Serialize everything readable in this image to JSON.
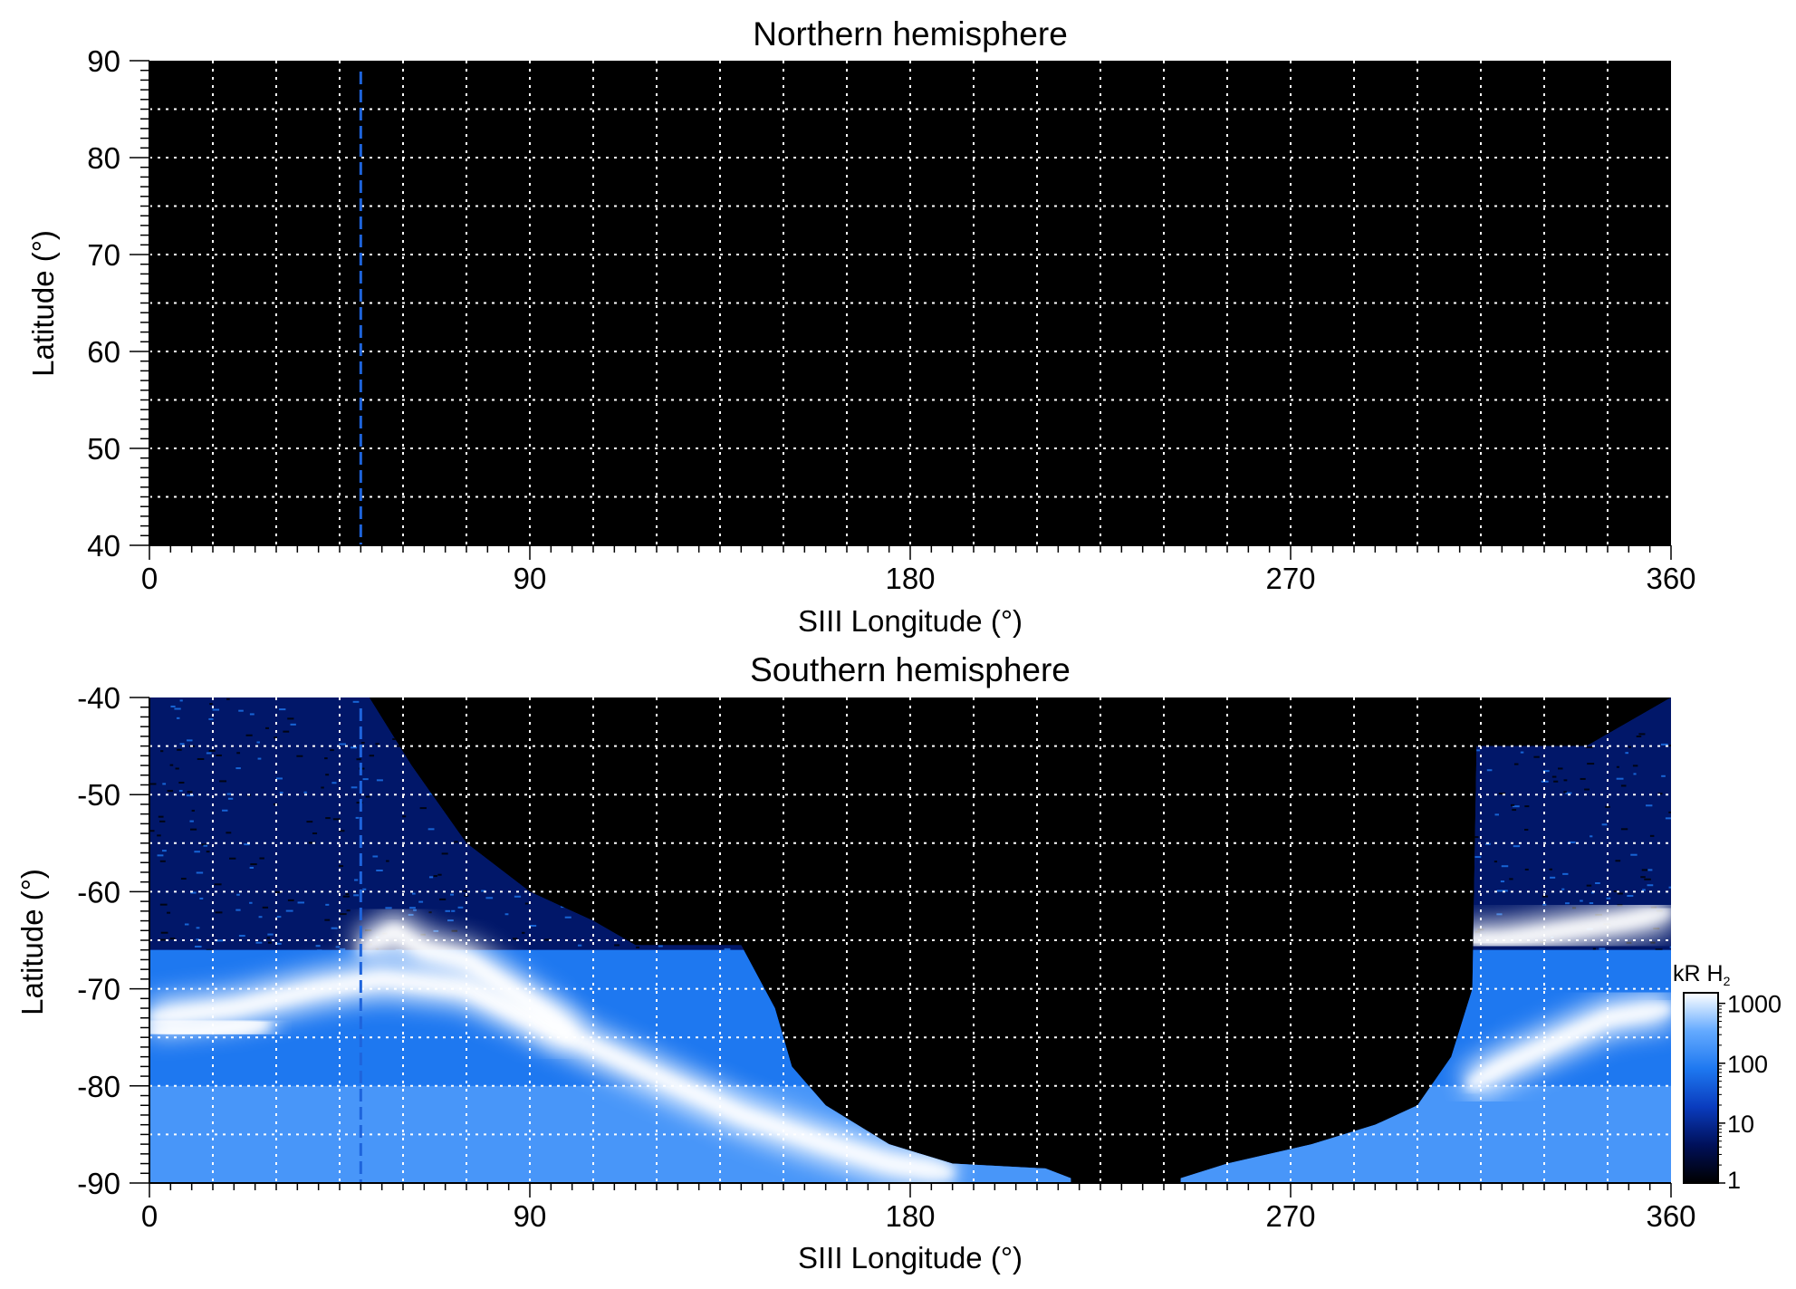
{
  "chart_data": [
    {
      "type": "heatmap",
      "title": "Northern hemisphere",
      "xlabel": "SIII Longitude (°)",
      "ylabel": "Latitude (°)",
      "xlim": [
        0,
        360
      ],
      "ylim": [
        40,
        90
      ],
      "x_ticks": [
        "0",
        "90",
        "180",
        "270",
        "360"
      ],
      "x_tick_values": [
        0,
        90,
        180,
        270,
        360
      ],
      "y_ticks": [
        "90",
        "80",
        "70",
        "60",
        "50",
        "40"
      ],
      "y_tick_values": [
        90,
        80,
        70,
        60,
        50,
        40
      ],
      "grid": true,
      "grid_x_step": 15,
      "grid_y_step": 5,
      "background": "#000000",
      "marker_longitude": 50,
      "emission_regions": []
    },
    {
      "type": "heatmap",
      "title": "Southern hemisphere",
      "xlabel": "SIII Longitude (°)",
      "ylabel": "Latitude (°)",
      "xlim": [
        0,
        360
      ],
      "ylim": [
        -90,
        -40
      ],
      "x_ticks": [
        "0",
        "90",
        "180",
        "270",
        "360"
      ],
      "x_tick_values": [
        0,
        90,
        180,
        270,
        360
      ],
      "y_ticks": [
        "-40",
        "-50",
        "-60",
        "-70",
        "-80",
        "-90"
      ],
      "y_tick_values": [
        -40,
        -50,
        -60,
        -70,
        -80,
        -90
      ],
      "grid": true,
      "grid_x_step": 15,
      "grid_y_step": 5,
      "background": "#000000",
      "marker_longitude": 50,
      "observed_boundary_left": [
        [
          0,
          -40
        ],
        [
          52,
          -40
        ],
        [
          62,
          -47
        ],
        [
          75,
          -55
        ],
        [
          90,
          -60
        ],
        [
          105,
          -63
        ],
        [
          115,
          -65.5
        ],
        [
          140,
          -65.5
        ],
        [
          148,
          -72
        ],
        [
          152,
          -78
        ],
        [
          160,
          -82
        ],
        [
          175,
          -86
        ],
        [
          190,
          -88
        ],
        [
          212,
          -88.5
        ],
        [
          218,
          -89.5
        ]
      ],
      "observed_boundary_right": [
        [
          244,
          -89.5
        ],
        [
          255,
          -88
        ],
        [
          275,
          -86
        ],
        [
          290,
          -84
        ],
        [
          300,
          -82
        ],
        [
          308,
          -77
        ],
        [
          313,
          -70
        ],
        [
          314,
          -45
        ],
        [
          340,
          -45
        ],
        [
          360,
          -40
        ]
      ],
      "aurora_bands": [
        {
          "x": [
            0,
            20,
            40,
            55,
            75,
            100,
            120,
            140,
            160,
            175,
            190
          ],
          "y": [
            -73,
            -72,
            -70,
            -69,
            -70,
            -75,
            -79,
            -83,
            -86,
            -88,
            -89
          ],
          "intensity": 1000
        },
        {
          "x": [
            50,
            58,
            65,
            75,
            85,
            95,
            100
          ],
          "y": [
            -66,
            -64,
            -66,
            -67,
            -70,
            -73,
            -75
          ],
          "intensity": 1000
        },
        {
          "x": [
            310,
            320,
            335,
            350,
            360
          ],
          "y": [
            -65,
            -65,
            -64,
            -63,
            -62
          ],
          "intensity": 1000
        },
        {
          "x": [
            312,
            320,
            330,
            345,
            360
          ],
          "y": [
            -80,
            -78,
            -76,
            -73,
            -72
          ],
          "intensity": 1000
        },
        {
          "x": [
            0,
            10,
            20,
            28
          ],
          "y": [
            -74.5,
            -74.5,
            -74,
            -73.5
          ],
          "intensity": 800
        }
      ],
      "colorbar": {
        "label": "kR H",
        "label_subscript": "2",
        "scale": "log",
        "ticks": [
          "1000",
          "100",
          "10",
          "1"
        ],
        "tick_values": [
          1000,
          100,
          10,
          1
        ],
        "colors": [
          "#000000",
          "#00105a",
          "#0a3cbe",
          "#1e78f0",
          "#64aaff",
          "#ffffff"
        ]
      }
    }
  ]
}
